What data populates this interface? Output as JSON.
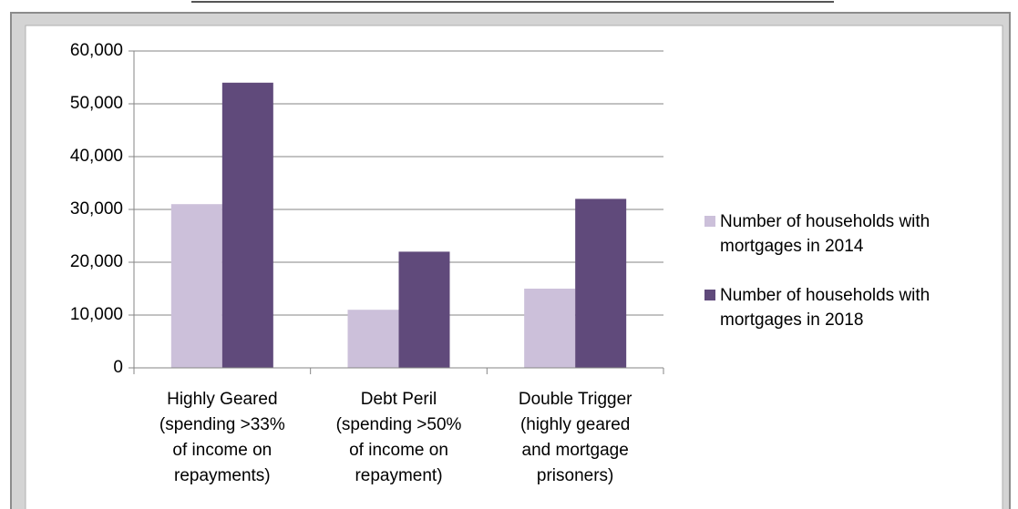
{
  "chart_data": {
    "type": "bar",
    "categories": [
      "Highly Geared\n(spending >33%\nof income on\nrepayments)",
      "Debt Peril\n(spending >50%\nof income on\nrepayment)",
      "Double Trigger\n(highly geared\nand mortgage\nprisoners)"
    ],
    "series": [
      {
        "name": "Number of households with mortgages in 2014",
        "color": "#ccc0da",
        "values": [
          31000,
          11000,
          15000
        ]
      },
      {
        "name": "Number of households with mortgages in 2018",
        "color": "#604a7b",
        "values": [
          54000,
          22000,
          32000
        ]
      }
    ],
    "ylim": [
      0,
      60000
    ],
    "yticks": [
      0,
      {
        "value": 10000,
        "label": "10,000"
      },
      {
        "value": 20000,
        "label": "20,000"
      },
      {
        "value": 30000,
        "label": "30,000"
      },
      {
        "value": 40000,
        "label": "40,000"
      },
      {
        "value": 50000,
        "label": "50,000"
      },
      {
        "value": 60000,
        "label": "60,000"
      }
    ],
    "grid": true,
    "legend": "right"
  }
}
